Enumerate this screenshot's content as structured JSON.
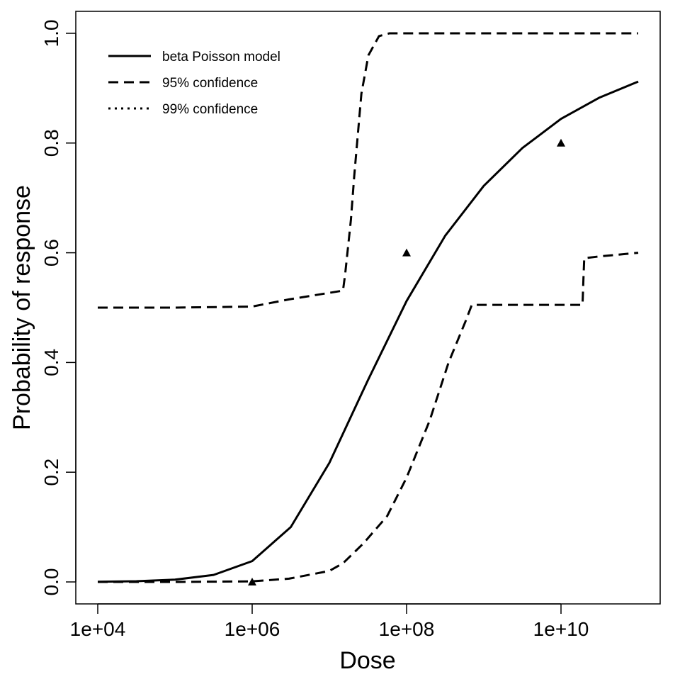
{
  "chart_data": {
    "type": "line",
    "title": "",
    "xlabel": "Dose",
    "ylabel": "Probability of response",
    "x_scale": "log",
    "xlim": [
      10000,
      100000000000
    ],
    "ylim": [
      0,
      1
    ],
    "x_ticks": [
      10000,
      1000000,
      100000000,
      10000000000
    ],
    "x_tick_labels": [
      "1e+04",
      "1e+06",
      "1e+08",
      "1e+10"
    ],
    "y_ticks": [
      0,
      0.2,
      0.4,
      0.6,
      0.8,
      1.0
    ],
    "y_tick_labels": [
      "0.0",
      "0.2",
      "0.4",
      "0.6",
      "0.8",
      "1.0"
    ],
    "grid": false,
    "legend_position": "top-left",
    "legend": [
      {
        "label": "beta Poisson model",
        "style": "solid"
      },
      {
        "label": "95% confidence",
        "style": "dashed"
      },
      {
        "label": "99% confidence",
        "style": "dotted"
      }
    ],
    "series": [
      {
        "name": "beta Poisson model",
        "style": "solid",
        "x": [
          10000.0,
          31600.0,
          100000.0,
          316000.0,
          1000000.0,
          3160000.0,
          10000000.0,
          31600000.0,
          100000000.0,
          316000000.0,
          1000000000.0,
          3160000000.0,
          10000000000.0,
          31600000000.0,
          100000000000.0
        ],
        "y": [
          0.0004,
          0.0013,
          0.0041,
          0.0128,
          0.038,
          0.1,
          0.217,
          0.368,
          0.512,
          0.631,
          0.722,
          0.791,
          0.844,
          0.883,
          0.912
        ]
      },
      {
        "name": "95% confidence",
        "style": "dashed",
        "x": [
          10000.0,
          100000.0,
          1000000.0,
          3000000.0,
          15000000.0,
          16000000.0,
          19000000.0,
          21000000.0,
          26000000.0,
          32000000.0,
          44000000.0,
          60000000.0,
          100000000.0,
          1000000000.0,
          100000000000.0
        ],
        "y": [
          0.5,
          0.5,
          0.502,
          0.515,
          0.531,
          0.56,
          0.66,
          0.74,
          0.89,
          0.96,
          0.995,
          1.0,
          1.0,
          1.0,
          1.0
        ]
      },
      {
        "name": "95% confidence",
        "style": "dashed",
        "x": [
          10000.0,
          100000.0,
          1000000.0,
          3000000.0,
          10000000.0,
          15000000.0,
          27500000.0,
          56000000.0,
          100000000.0,
          200000000.0,
          350000000.0,
          580000000.0,
          700000000.0,
          1000000000.0,
          10000000000.0,
          19000000000.0,
          19500000000.0,
          20000000000.0,
          30000000000.0,
          100000000000.0
        ],
        "y": [
          0,
          0,
          0.001,
          0.006,
          0.02,
          0.034,
          0.07,
          0.12,
          0.19,
          0.295,
          0.4,
          0.475,
          0.505,
          0.505,
          0.505,
          0.505,
          0.55,
          0.59,
          0.593,
          0.6
        ]
      }
    ],
    "points": {
      "marker": "triangle",
      "x": [
        1000000,
        100000000,
        10000000000
      ],
      "y": [
        0.0,
        0.6,
        0.8
      ]
    }
  }
}
